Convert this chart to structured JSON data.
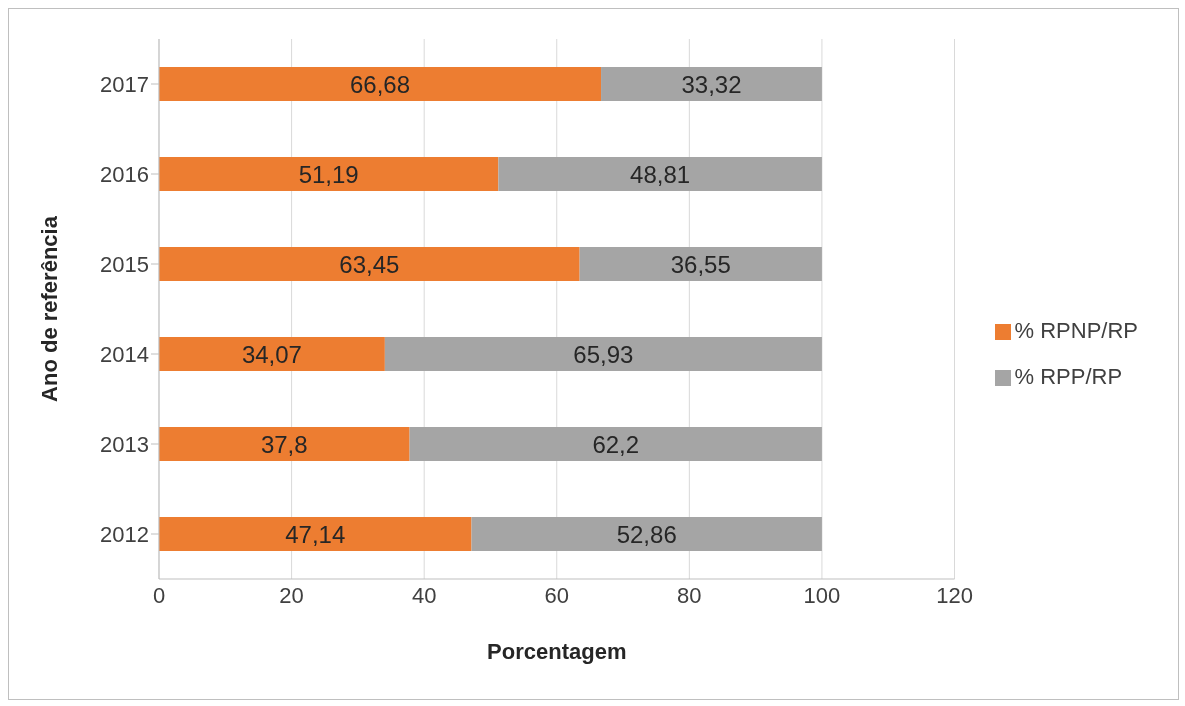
{
  "chart_data": {
    "type": "bar",
    "orientation": "horizontal",
    "stacked": true,
    "xlabel": "Porcentagem",
    "ylabel": "Ano de referência",
    "categories": [
      "2017",
      "2016",
      "2015",
      "2014",
      "2013",
      "2012"
    ],
    "series": [
      {
        "name": "% RPNP/RP",
        "color": "#ed7d31",
        "values": [
          66.68,
          51.19,
          63.45,
          34.07,
          37.8,
          47.14
        ],
        "value_labels": [
          "66,68",
          "51,19",
          "63,45",
          "34,07",
          "37,8",
          "47,14"
        ]
      },
      {
        "name": "% RPP/RP",
        "color": "#a5a5a5",
        "values": [
          33.32,
          48.81,
          36.55,
          65.93,
          62.2,
          52.86
        ],
        "value_labels": [
          "33,32",
          "48,81",
          "36,55",
          "65,93",
          "62,2",
          "52,86"
        ]
      }
    ],
    "xlim": [
      0,
      120
    ],
    "xticks": [
      0,
      20,
      40,
      60,
      80,
      100,
      120
    ],
    "grid": "x",
    "legend": "right"
  }
}
